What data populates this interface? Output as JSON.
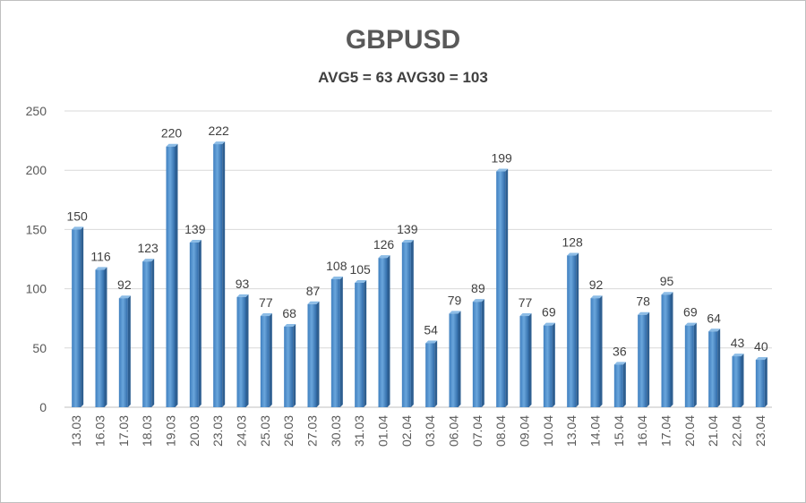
{
  "chart_data": {
    "type": "bar",
    "title": "GBPUSD",
    "subtitle": "AVG5 = 63 AVG30 = 103",
    "xlabel": "",
    "ylabel": "",
    "ylim": [
      0,
      250
    ],
    "yticks": [
      0,
      50,
      100,
      150,
      200,
      250
    ],
    "grid": true,
    "categories": [
      "13.03",
      "16.03",
      "17.03",
      "18.03",
      "19.03",
      "20.03",
      "23.03",
      "24.03",
      "25.03",
      "26.03",
      "27.03",
      "30.03",
      "31.03",
      "01.04",
      "02.04",
      "03.04",
      "06.04",
      "07.04",
      "08.04",
      "09.04",
      "10.04",
      "13.04",
      "14.04",
      "15.04",
      "16.04",
      "17.04",
      "20.04",
      "21.04",
      "22.04",
      "23.04"
    ],
    "values": [
      150,
      116,
      92,
      123,
      220,
      139,
      222,
      93,
      77,
      68,
      87,
      108,
      105,
      126,
      139,
      54,
      79,
      89,
      199,
      77,
      69,
      128,
      92,
      36,
      78,
      95,
      69,
      64,
      43,
      40
    ],
    "bar_color": "#5b9bd5"
  }
}
